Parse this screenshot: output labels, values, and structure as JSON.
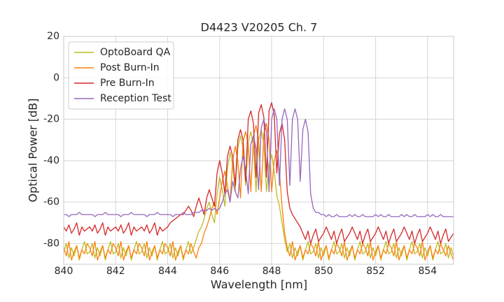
{
  "chart_data": {
    "type": "line",
    "title": "D4423 V20205 Ch. 7",
    "xlabel": "Wavelength [nm]",
    "ylabel": "Optical Power [dB]",
    "xlim": [
      840,
      855
    ],
    "ylim": [
      -90,
      20
    ],
    "xticks": [
      840,
      842,
      844,
      846,
      848,
      850,
      852,
      854
    ],
    "yticks": [
      -80,
      -60,
      -40,
      -20,
      0,
      20
    ],
    "grid": true,
    "legend": "upper left",
    "x": [
      840,
      840.1,
      840.2,
      840.3,
      840.4,
      840.5,
      840.6,
      840.7,
      840.8,
      840.9,
      841,
      841.1,
      841.2,
      841.3,
      841.4,
      841.5,
      841.6,
      841.7,
      841.8,
      841.9,
      842,
      842.1,
      842.2,
      842.3,
      842.4,
      842.5,
      842.6,
      842.7,
      842.8,
      842.9,
      843,
      843.1,
      843.2,
      843.3,
      843.4,
      843.5,
      843.6,
      843.7,
      843.8,
      843.9,
      844,
      844.1,
      844.2,
      844.3,
      844.4,
      844.5,
      844.6,
      844.7,
      844.8,
      844.9,
      845,
      845.1,
      845.2,
      845.3,
      845.4,
      845.5,
      845.6,
      845.7,
      845.8,
      845.9,
      846,
      846.1,
      846.2,
      846.3,
      846.4,
      846.5,
      846.6,
      846.7,
      846.8,
      846.9,
      847,
      847.1,
      847.2,
      847.3,
      847.4,
      847.5,
      847.6,
      847.7,
      847.8,
      847.9,
      848,
      848.1,
      848.2,
      848.3,
      848.4,
      848.5,
      848.6,
      848.7,
      848.8,
      848.9,
      849,
      849.1,
      849.2,
      849.3,
      849.4,
      849.5,
      849.6,
      849.7,
      849.8,
      849.9,
      850,
      850.1,
      850.2,
      850.3,
      850.4,
      850.5,
      850.6,
      850.7,
      850.8,
      850.9,
      851,
      851.1,
      851.2,
      851.3,
      851.4,
      851.5,
      851.6,
      851.7,
      851.8,
      851.9,
      852,
      852.1,
      852.2,
      852.3,
      852.4,
      852.5,
      852.6,
      852.7,
      852.8,
      852.9,
      853,
      853.1,
      853.2,
      853.3,
      853.4,
      853.5,
      853.6,
      853.7,
      853.8,
      853.9,
      854,
      854.1,
      854.2,
      854.3,
      854.4,
      854.5,
      854.6,
      854.7,
      854.8,
      854.9,
      855
    ],
    "series": [
      {
        "name": "OptoBoard QA",
        "color": "#bcbd22",
        "values": [
          -84,
          -80,
          -87,
          -82,
          -86,
          -81,
          -88,
          -83,
          -79,
          -85,
          -84,
          -80,
          -87,
          -82,
          -86,
          -81,
          -88,
          -83,
          -79,
          -85,
          -84,
          -80,
          -87,
          -82,
          -86,
          -81,
          -88,
          -83,
          -79,
          -85,
          -84,
          -80,
          -87,
          -82,
          -86,
          -81,
          -88,
          -83,
          -79,
          -85,
          -84,
          -80,
          -87,
          -82,
          -86,
          -81,
          -88,
          -83,
          -79,
          -85,
          -82,
          -78,
          -74,
          -72,
          -68,
          -63,
          -60,
          -66,
          -70,
          -56,
          -48,
          -54,
          -62,
          -44,
          -36,
          -42,
          -55,
          -34,
          -28,
          -34,
          -52,
          -31,
          -26,
          -33,
          -55,
          -30,
          -25,
          -32,
          -55,
          -42,
          -37,
          -45,
          -57,
          -62,
          -70,
          -78,
          -84,
          -80,
          -87,
          -82,
          -86,
          -81,
          -88,
          -83,
          -79,
          -85,
          -84,
          -80,
          -87,
          -82,
          -86,
          -81,
          -88,
          -83,
          -79,
          -85,
          -84,
          -80,
          -87,
          -82,
          -86,
          -81,
          -88,
          -83,
          -79,
          -85,
          -84,
          -80,
          -87,
          -82,
          -86,
          -81,
          -88,
          -83,
          -79,
          -85,
          -84,
          -80,
          -87,
          -82,
          -86,
          -81,
          -88,
          -83,
          -79,
          -85,
          -84,
          -80,
          -87,
          -82,
          -86,
          -81,
          -88,
          -83,
          -79,
          -85,
          -84,
          -80,
          -87,
          -82,
          -86
        ]
      },
      {
        "name": "Post Burn-In",
        "color": "#ff7f0e",
        "values": [
          -82,
          -86,
          -79,
          -88,
          -84,
          -81,
          -87,
          -83,
          -85,
          -80,
          -82,
          -86,
          -79,
          -88,
          -84,
          -81,
          -87,
          -83,
          -85,
          -80,
          -82,
          -86,
          -79,
          -88,
          -84,
          -81,
          -87,
          -83,
          -85,
          -80,
          -82,
          -86,
          -79,
          -88,
          -84,
          -81,
          -87,
          -83,
          -85,
          -80,
          -82,
          -86,
          -79,
          -88,
          -84,
          -81,
          -87,
          -83,
          -85,
          -80,
          -84,
          -87,
          -82,
          -80,
          -75,
          -72,
          -68,
          -63,
          -60,
          -66,
          -58,
          -50,
          -45,
          -52,
          -60,
          -40,
          -33,
          -40,
          -58,
          -31,
          -26,
          -32,
          -55,
          -28,
          -23,
          -30,
          -55,
          -27,
          -22,
          -30,
          -55,
          -40,
          -35,
          -45,
          -62,
          -75,
          -82,
          -86,
          -79,
          -88,
          -84,
          -81,
          -87,
          -83,
          -85,
          -80,
          -82,
          -86,
          -79,
          -88,
          -84,
          -81,
          -87,
          -83,
          -85,
          -80,
          -82,
          -86,
          -79,
          -88,
          -84,
          -81,
          -87,
          -83,
          -85,
          -80,
          -82,
          -86,
          -79,
          -88,
          -84,
          -81,
          -87,
          -83,
          -85,
          -80,
          -82,
          -86,
          -79,
          -88,
          -84,
          -81,
          -87,
          -83,
          -85,
          -80,
          -82,
          -86,
          -79,
          -88,
          -84,
          -81,
          -87,
          -83,
          -85,
          -80,
          -83,
          -86,
          -81,
          -85,
          -88
        ]
      },
      {
        "name": "Pre Burn-In",
        "color": "#d62728",
        "values": [
          -72,
          -74,
          -71,
          -75,
          -73,
          -70,
          -76,
          -72,
          -74,
          -73,
          -72,
          -74,
          -71,
          -75,
          -73,
          -70,
          -76,
          -72,
          -74,
          -73,
          -72,
          -74,
          -71,
          -75,
          -73,
          -70,
          -76,
          -72,
          -74,
          -73,
          -72,
          -74,
          -71,
          -75,
          -73,
          -70,
          -76,
          -72,
          -74,
          -73,
          -72,
          -70,
          -69,
          -68,
          -67,
          -66,
          -66,
          -64,
          -62,
          -64,
          -67,
          -62,
          -58,
          -62,
          -66,
          -58,
          -54,
          -58,
          -62,
          -46,
          -40,
          -46,
          -56,
          -38,
          -33,
          -38,
          -52,
          -30,
          -25,
          -30,
          -50,
          -20,
          -16,
          -22,
          -48,
          -17,
          -13,
          -19,
          -48,
          -16,
          -12,
          -18,
          -46,
          -27,
          -22,
          -30,
          -55,
          -63,
          -66,
          -68,
          -70,
          -72,
          -75,
          -78,
          -74,
          -80,
          -76,
          -73,
          -79,
          -77,
          -75,
          -72,
          -75,
          -78,
          -74,
          -80,
          -76,
          -73,
          -79,
          -77,
          -75,
          -72,
          -75,
          -78,
          -74,
          -80,
          -76,
          -73,
          -79,
          -77,
          -75,
          -72,
          -75,
          -78,
          -74,
          -80,
          -76,
          -73,
          -79,
          -77,
          -75,
          -72,
          -75,
          -78,
          -74,
          -80,
          -76,
          -73,
          -79,
          -77,
          -75,
          -72,
          -75,
          -78,
          -74,
          -80,
          -76,
          -73,
          -79,
          -77,
          -75
        ]
      },
      {
        "name": "Reception Test",
        "color": "#9467bd",
        "values": [
          -66,
          -66,
          -67,
          -66,
          -66,
          -66,
          -65,
          -66,
          -66,
          -66,
          -66,
          -66,
          -67,
          -66,
          -66,
          -66,
          -65,
          -66,
          -66,
          -66,
          -66,
          -66,
          -67,
          -66,
          -66,
          -66,
          -65,
          -66,
          -66,
          -66,
          -66,
          -66,
          -67,
          -66,
          -66,
          -66,
          -65,
          -66,
          -66,
          -66,
          -66,
          -66,
          -67,
          -66,
          -66,
          -66,
          -65,
          -66,
          -66,
          -66,
          -65,
          -65,
          -65,
          -64,
          -64,
          -64,
          -63,
          -64,
          -63,
          -64,
          -63,
          -60,
          -56,
          -54,
          -60,
          -50,
          -55,
          -58,
          -44,
          -38,
          -44,
          -56,
          -32,
          -28,
          -34,
          -54,
          -24,
          -20,
          -26,
          -55,
          -20,
          -15,
          -20,
          -52,
          -20,
          -15,
          -20,
          -52,
          -20,
          -15,
          -20,
          -50,
          -25,
          -20,
          -26,
          -56,
          -63,
          -65,
          -65,
          -66,
          -66,
          -67,
          -66,
          -67,
          -67,
          -66,
          -67,
          -67,
          -67,
          -67,
          -66,
          -67,
          -66,
          -67,
          -67,
          -66,
          -67,
          -67,
          -67,
          -67,
          -66,
          -67,
          -66,
          -67,
          -67,
          -66,
          -67,
          -67,
          -67,
          -67,
          -66,
          -67,
          -66,
          -67,
          -67,
          -66,
          -67,
          -67,
          -67,
          -67,
          -66,
          -67,
          -66,
          -67,
          -67,
          -66,
          -67,
          -67,
          -67,
          -67,
          -67
        ]
      }
    ]
  }
}
